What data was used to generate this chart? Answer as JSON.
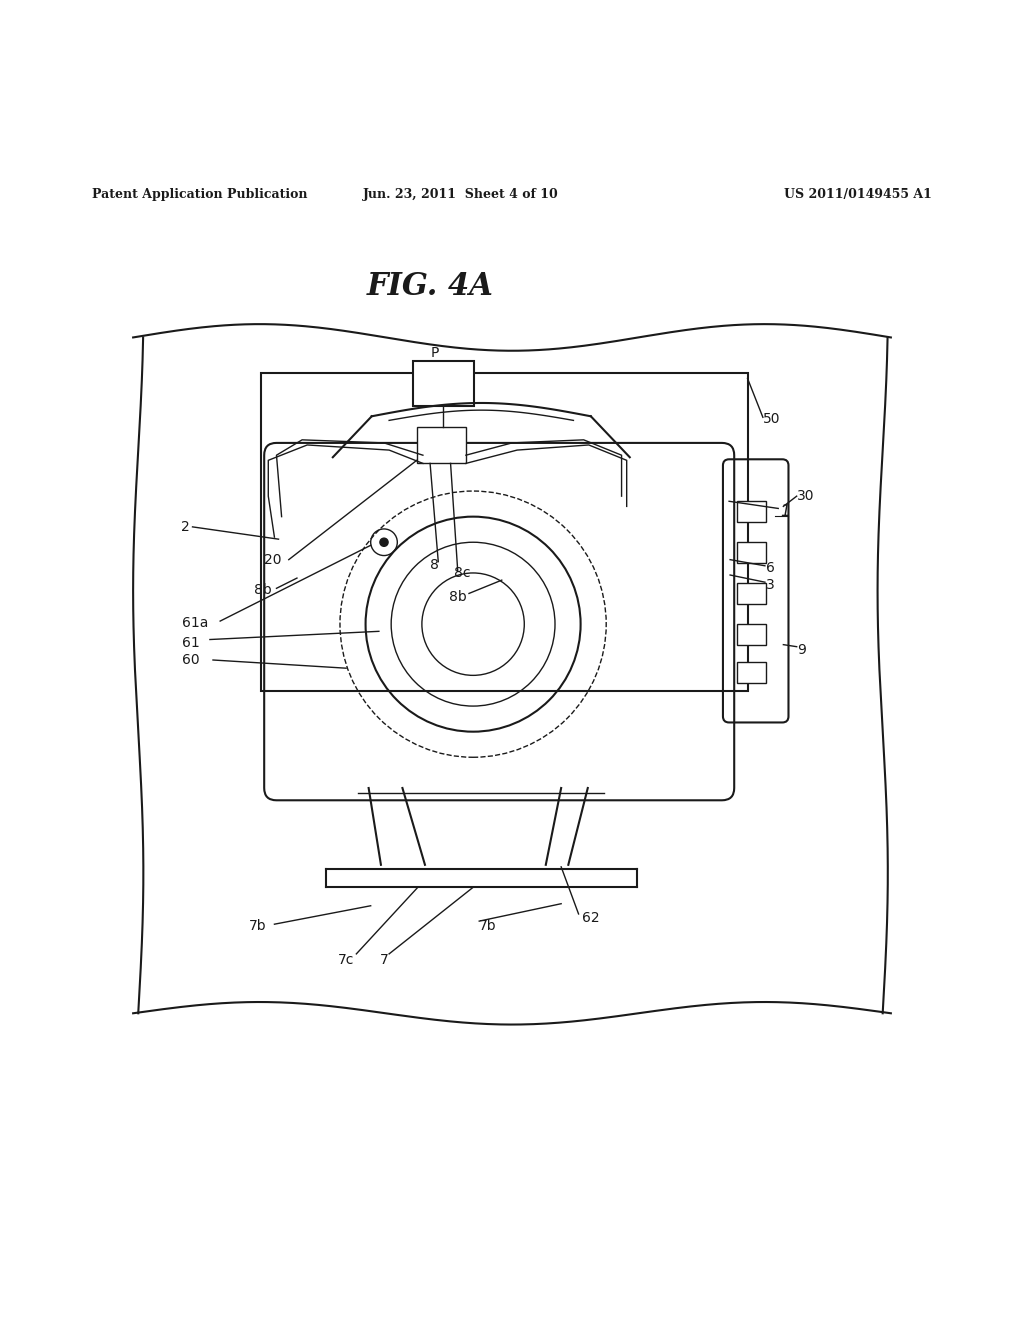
{
  "bg_color": "#ffffff",
  "line_color": "#1a1a1a",
  "header_left": "Patent Application Publication",
  "header_center": "Jun. 23, 2011  Sheet 4 of 10",
  "header_right": "US 2011/0149455 A1",
  "fig_title": "FIG. 4A"
}
